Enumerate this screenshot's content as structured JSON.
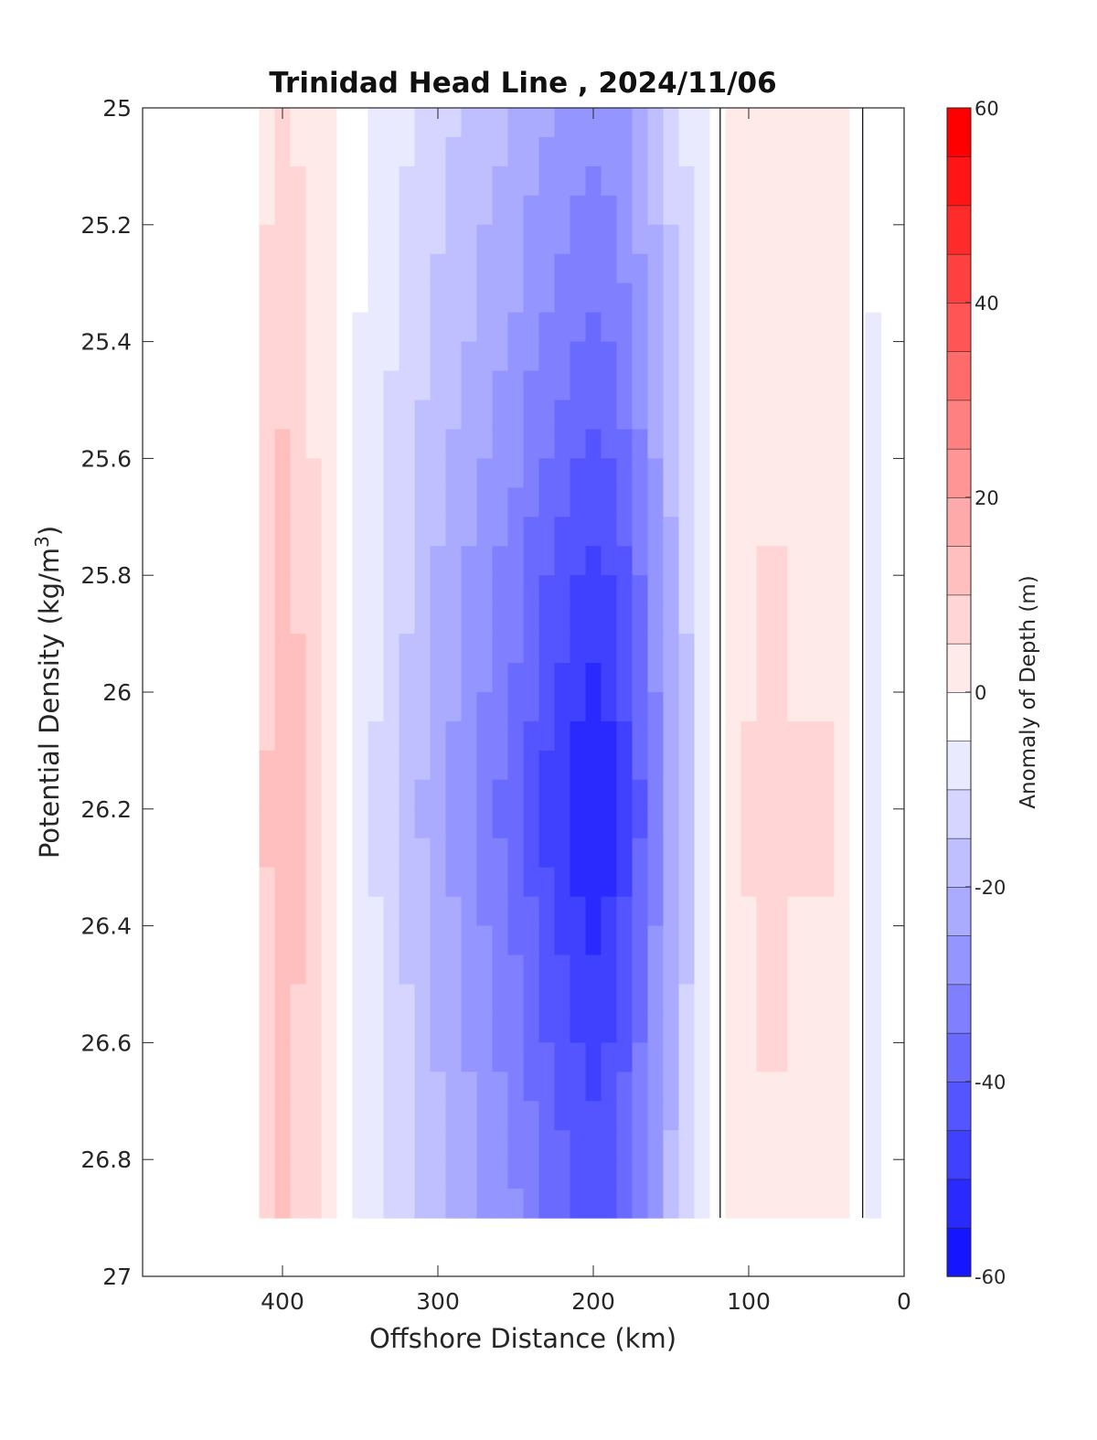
{
  "chart_data": {
    "type": "heatmap",
    "subtype": "filled-contour",
    "title": "Trinidad Head Line , 2024/11/06",
    "xlabel": "Offshore Distance (km)",
    "ylabel_main": "Potential Density (kg/m",
    "ylabel_sup": "3",
    "ylabel_close": ")",
    "xlim": [
      490,
      0
    ],
    "x_reversed": true,
    "ylim": [
      25,
      27
    ],
    "y_reversed": true,
    "x_ticks": [
      "400",
      "300",
      "200",
      "100",
      "0"
    ],
    "x_tick_values": [
      400,
      300,
      200,
      100,
      0
    ],
    "y_ticks": [
      "25",
      "25.2",
      "25.4",
      "25.6",
      "25.8",
      "26",
      "26.2",
      "26.4",
      "26.6",
      "26.8",
      "27"
    ],
    "y_tick_values": [
      25,
      25.2,
      25.4,
      25.6,
      25.8,
      26,
      26.2,
      26.4,
      26.6,
      26.8,
      27
    ],
    "colorbar": {
      "label": "Anomaly of Depth (m)",
      "ticks": [
        "60",
        "40",
        "20",
        "0",
        "-20",
        "-40",
        "-60"
      ],
      "tick_values": [
        60,
        40,
        20,
        0,
        -20,
        -40,
        -60
      ],
      "range": [
        -60,
        60
      ],
      "step": 5,
      "colormap": "blue-white-red",
      "negative_color": "#0000ff",
      "positive_color": "#ff0000"
    },
    "data_extent": {
      "x": [
        410,
        20
      ],
      "y": [
        25,
        26.9
      ]
    },
    "contour_lines_at": [
      0
    ],
    "grid_x": [
      410,
      400,
      390,
      380,
      370,
      360,
      350,
      340,
      330,
      320,
      310,
      300,
      290,
      280,
      270,
      260,
      250,
      240,
      230,
      220,
      210,
      200,
      190,
      180,
      170,
      160,
      150,
      140,
      130,
      120,
      110,
      100,
      90,
      80,
      70,
      60,
      50,
      40,
      30,
      20
    ],
    "profile": {
      "x": [
        410,
        400,
        390,
        380,
        370,
        360,
        350,
        340,
        330,
        320,
        310,
        300,
        290,
        280,
        270,
        260,
        250,
        240,
        230,
        220,
        210,
        200,
        190,
        180,
        170,
        160,
        150,
        140,
        130,
        120,
        110,
        100,
        90,
        80,
        70,
        60,
        50,
        40,
        30,
        20
      ],
      "anomaly": [
        13,
        17,
        14,
        10,
        5,
        0,
        -4,
        -8,
        -11,
        -14,
        -18,
        -21,
        -24,
        -27,
        -30,
        -33,
        -36,
        -40,
        -44,
        -47,
        -50,
        -52,
        -50,
        -45,
        -38,
        -30,
        -22,
        -14,
        -7,
        -1,
        5,
        8,
        9,
        9,
        8,
        8,
        8,
        6,
        2,
        -4
      ]
    },
    "depth_modulation": [
      {
        "y": 25.0,
        "factor": 0.5
      },
      {
        "y": 25.4,
        "factor": 0.65
      },
      {
        "y": 25.8,
        "factor": 0.85
      },
      {
        "y": 26.2,
        "factor": 1.0
      },
      {
        "y": 26.6,
        "factor": 0.85
      },
      {
        "y": 26.9,
        "factor": 0.75
      }
    ]
  }
}
